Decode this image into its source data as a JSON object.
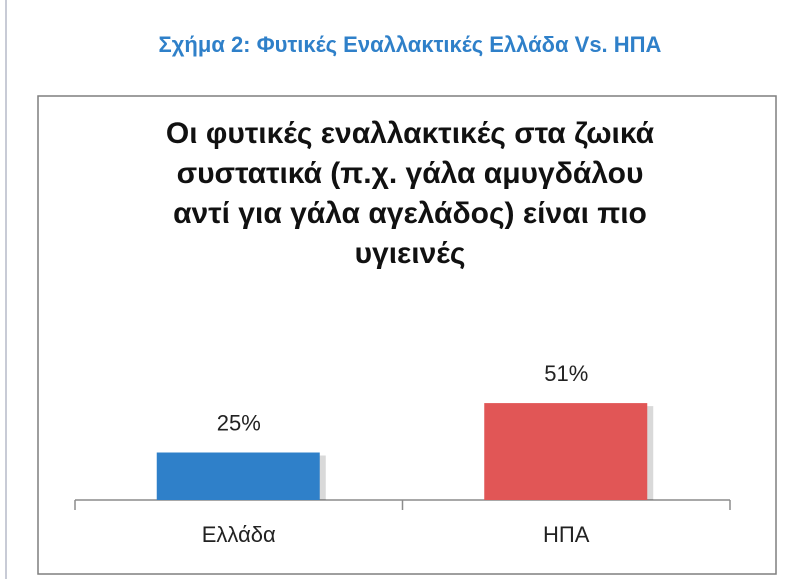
{
  "caption": "Σχήμα 2: Φυτικές Εναλλακτικές Ελλάδα Vs. ΗΠΑ",
  "chart_data": {
    "type": "bar",
    "title": [
      "Οι φυτικές εναλλακτικές στα ζωικά",
      "συστατικά (π.χ. γάλα αμυγδάλου",
      "αντί για γάλα αγελάδος) είναι πιο",
      "υγιεινές"
    ],
    "categories": [
      "Ελλάδα",
      "ΗΠΑ"
    ],
    "values": [
      25,
      51
    ],
    "value_labels": [
      "25%",
      "51%"
    ],
    "colors": [
      "#2f80c9",
      "#e15656"
    ]
  }
}
